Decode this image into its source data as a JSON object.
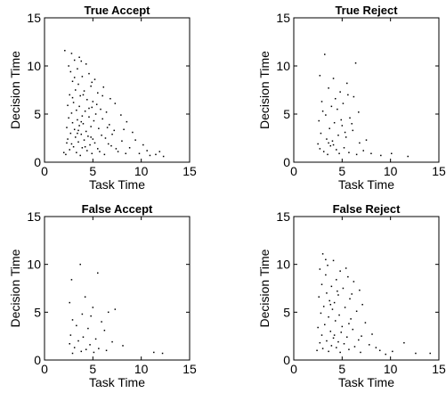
{
  "figure": {
    "background": "#ffffff",
    "point_color": "#000000"
  },
  "chart_data": [
    {
      "type": "scatter",
      "title": "True Accept",
      "xlabel": "Task Time",
      "ylabel": "Decision Time",
      "xlim": [
        0,
        15
      ],
      "ylim": [
        0,
        15
      ],
      "xticks": [
        0,
        5,
        10,
        15
      ],
      "yticks": [
        0,
        5,
        10,
        15
      ],
      "grid": false,
      "points": [
        [
          2.1,
          11.6
        ],
        [
          2.8,
          11.3
        ],
        [
          3.1,
          10.6
        ],
        [
          3.8,
          10.5
        ],
        [
          4.3,
          10.2
        ],
        [
          3.4,
          9.7
        ],
        [
          2.7,
          9.4
        ],
        [
          4.6,
          9.2
        ],
        [
          3.9,
          8.9
        ],
        [
          5.2,
          8.6
        ],
        [
          2.9,
          8.4
        ],
        [
          3.5,
          8.1
        ],
        [
          4.8,
          7.9
        ],
        [
          6.1,
          7.8
        ],
        [
          3.2,
          7.5
        ],
        [
          4.1,
          7.4
        ],
        [
          5.5,
          7.2
        ],
        [
          2.6,
          7.0
        ],
        [
          3.7,
          6.9
        ],
        [
          6.8,
          6.6
        ],
        [
          4.4,
          6.5
        ],
        [
          5.0,
          6.3
        ],
        [
          3.0,
          6.2
        ],
        [
          7.3,
          6.1
        ],
        [
          2.4,
          5.9
        ],
        [
          3.6,
          5.8
        ],
        [
          4.9,
          5.7
        ],
        [
          5.8,
          5.5
        ],
        [
          3.3,
          5.4
        ],
        [
          4.2,
          5.3
        ],
        [
          6.4,
          5.2
        ],
        [
          2.8,
          5.1
        ],
        [
          5.3,
          5.0
        ],
        [
          7.9,
          4.9
        ],
        [
          3.9,
          4.8
        ],
        [
          4.6,
          4.7
        ],
        [
          2.5,
          4.6
        ],
        [
          6.0,
          4.5
        ],
        [
          3.4,
          4.4
        ],
        [
          5.1,
          4.3
        ],
        [
          8.5,
          4.2
        ],
        [
          2.9,
          4.1
        ],
        [
          4.0,
          4.0
        ],
        [
          6.7,
          3.9
        ],
        [
          3.6,
          3.8
        ],
        [
          4.8,
          3.7
        ],
        [
          2.3,
          3.6
        ],
        [
          5.6,
          3.5
        ],
        [
          3.1,
          3.4
        ],
        [
          7.2,
          3.3
        ],
        [
          4.3,
          3.2
        ],
        [
          9.1,
          3.1
        ],
        [
          2.7,
          3.0
        ],
        [
          3.8,
          2.9
        ],
        [
          5.9,
          2.8
        ],
        [
          4.5,
          2.7
        ],
        [
          3.2,
          2.6
        ],
        [
          6.3,
          2.5
        ],
        [
          2.4,
          2.4
        ],
        [
          4.1,
          2.3
        ],
        [
          8.0,
          2.2
        ],
        [
          3.5,
          2.1
        ],
        [
          5.2,
          2.0
        ],
        [
          2.8,
          1.9
        ],
        [
          4.7,
          1.8
        ],
        [
          6.9,
          1.7
        ],
        [
          3.0,
          1.6
        ],
        [
          3.9,
          1.5
        ],
        [
          5.5,
          1.4
        ],
        [
          2.6,
          1.3
        ],
        [
          4.4,
          1.2
        ],
        [
          7.6,
          1.1
        ],
        [
          3.3,
          1.0
        ],
        [
          4.9,
          0.9
        ],
        [
          2.2,
          0.8
        ],
        [
          6.2,
          0.8
        ],
        [
          3.7,
          0.7
        ],
        [
          9.8,
          0.9
        ],
        [
          10.6,
          1.2
        ],
        [
          11.5,
          0.8
        ],
        [
          12.3,
          0.6
        ],
        [
          8.8,
          1.5
        ],
        [
          9.4,
          2.3
        ],
        [
          10.2,
          1.8
        ],
        [
          7.0,
          2.9
        ],
        [
          6.5,
          3.6
        ],
        [
          5.4,
          6.0
        ],
        [
          4.0,
          7.0
        ],
        [
          3.1,
          8.8
        ],
        [
          2.5,
          10.0
        ],
        [
          3.6,
          10.9
        ],
        [
          4.9,
          8.3
        ],
        [
          6.0,
          6.9
        ],
        [
          8.2,
          3.4
        ],
        [
          10.9,
          0.7
        ],
        [
          11.9,
          1.1
        ],
        [
          2.0,
          1.0
        ],
        [
          2.3,
          2.0
        ],
        [
          3.4,
          3.0
        ],
        [
          4.2,
          1.6
        ],
        [
          5.0,
          2.4
        ],
        [
          5.7,
          1.1
        ],
        [
          6.6,
          1.9
        ],
        [
          7.4,
          1.4
        ],
        [
          8.4,
          0.9
        ],
        [
          3.8,
          4.2
        ],
        [
          4.6,
          5.6
        ],
        [
          2.9,
          6.7
        ],
        [
          3.5,
          3.3
        ],
        [
          4.8,
          2.6
        ]
      ]
    },
    {
      "type": "scatter",
      "title": "True Reject",
      "xlabel": "Task Time",
      "ylabel": "Decision Time",
      "xlim": [
        0,
        15
      ],
      "ylim": [
        0,
        15
      ],
      "xticks": [
        0,
        5,
        10,
        15
      ],
      "yticks": [
        0,
        5,
        10,
        15
      ],
      "grid": false,
      "points": [
        [
          3.2,
          11.2
        ],
        [
          6.4,
          10.3
        ],
        [
          2.7,
          9.0
        ],
        [
          4.1,
          8.7
        ],
        [
          5.5,
          8.2
        ],
        [
          3.6,
          7.7
        ],
        [
          4.8,
          7.3
        ],
        [
          6.2,
          6.8
        ],
        [
          2.9,
          6.3
        ],
        [
          5.1,
          6.1
        ],
        [
          3.9,
          5.8
        ],
        [
          4.5,
          5.5
        ],
        [
          6.7,
          5.2
        ],
        [
          3.3,
          4.9
        ],
        [
          5.8,
          4.6
        ],
        [
          2.6,
          4.3
        ],
        [
          4.2,
          4.1
        ],
        [
          5.0,
          3.8
        ],
        [
          3.7,
          3.5
        ],
        [
          6.1,
          3.3
        ],
        [
          2.8,
          3.0
        ],
        [
          4.6,
          2.8
        ],
        [
          5.4,
          2.6
        ],
        [
          3.4,
          2.4
        ],
        [
          4.0,
          2.2
        ],
        [
          6.8,
          2.0
        ],
        [
          2.5,
          1.9
        ],
        [
          3.8,
          1.7
        ],
        [
          5.2,
          1.5
        ],
        [
          4.4,
          1.3
        ],
        [
          7.2,
          1.2
        ],
        [
          3.1,
          1.1
        ],
        [
          5.7,
          1.0
        ],
        [
          4.7,
          0.9
        ],
        [
          8.0,
          0.9
        ],
        [
          3.5,
          0.8
        ],
        [
          6.5,
          0.8
        ],
        [
          9.0,
          0.7
        ],
        [
          10.1,
          0.9
        ],
        [
          11.8,
          0.6
        ],
        [
          7.5,
          2.3
        ],
        [
          6.0,
          4.0
        ],
        [
          4.3,
          6.6
        ],
        [
          5.6,
          7.0
        ],
        [
          3.0,
          5.3
        ],
        [
          4.9,
          4.4
        ],
        [
          3.6,
          2.0
        ],
        [
          5.3,
          3.1
        ],
        [
          2.7,
          1.4
        ],
        [
          4.1,
          1.8
        ]
      ]
    },
    {
      "type": "scatter",
      "title": "False Accept",
      "xlabel": "Task Time",
      "ylabel": "Decision Time",
      "xlim": [
        0,
        15
      ],
      "ylim": [
        0,
        15
      ],
      "xticks": [
        0,
        5,
        10,
        15
      ],
      "yticks": [
        0,
        5,
        10,
        15
      ],
      "grid": false,
      "points": [
        [
          3.7,
          10.0
        ],
        [
          2.8,
          8.4
        ],
        [
          5.5,
          9.1
        ],
        [
          4.2,
          6.6
        ],
        [
          2.6,
          6.0
        ],
        [
          5.0,
          5.5
        ],
        [
          7.3,
          5.3
        ],
        [
          6.6,
          5.0
        ],
        [
          3.9,
          4.8
        ],
        [
          4.8,
          4.6
        ],
        [
          2.9,
          4.2
        ],
        [
          5.9,
          4.0
        ],
        [
          3.3,
          3.6
        ],
        [
          4.5,
          3.3
        ],
        [
          6.2,
          3.1
        ],
        [
          2.7,
          2.6
        ],
        [
          4.0,
          2.4
        ],
        [
          5.3,
          2.2
        ],
        [
          3.5,
          2.0
        ],
        [
          7.0,
          1.9
        ],
        [
          2.6,
          1.7
        ],
        [
          4.7,
          1.6
        ],
        [
          8.1,
          1.5
        ],
        [
          3.1,
          1.3
        ],
        [
          5.6,
          1.2
        ],
        [
          4.3,
          1.1
        ],
        [
          6.4,
          1.0
        ],
        [
          3.8,
          0.9
        ],
        [
          11.3,
          0.8
        ],
        [
          12.2,
          0.7
        ],
        [
          2.9,
          0.7
        ],
        [
          5.1,
          0.8
        ]
      ]
    },
    {
      "type": "scatter",
      "title": "False Reject",
      "xlabel": "Task Time",
      "ylabel": "Decision Time",
      "xlim": [
        0,
        15
      ],
      "ylim": [
        0,
        15
      ],
      "xticks": [
        0,
        5,
        10,
        15
      ],
      "yticks": [
        0,
        5,
        10,
        15
      ],
      "grid": false,
      "points": [
        [
          3.0,
          11.1
        ],
        [
          4.1,
          10.4
        ],
        [
          3.5,
          9.9
        ],
        [
          2.7,
          9.5
        ],
        [
          4.8,
          9.3
        ],
        [
          3.3,
          8.9
        ],
        [
          5.6,
          8.7
        ],
        [
          4.4,
          8.4
        ],
        [
          6.2,
          8.2
        ],
        [
          2.9,
          7.9
        ],
        [
          3.9,
          7.7
        ],
        [
          5.1,
          7.5
        ],
        [
          6.8,
          7.3
        ],
        [
          3.4,
          7.0
        ],
        [
          4.6,
          6.8
        ],
        [
          2.6,
          6.6
        ],
        [
          5.8,
          6.4
        ],
        [
          3.7,
          6.2
        ],
        [
          4.2,
          6.0
        ],
        [
          7.1,
          5.8
        ],
        [
          3.1,
          5.6
        ],
        [
          5.3,
          5.5
        ],
        [
          4.0,
          5.3
        ],
        [
          6.5,
          5.1
        ],
        [
          2.8,
          4.9
        ],
        [
          4.7,
          4.7
        ],
        [
          3.6,
          4.5
        ],
        [
          5.9,
          4.3
        ],
        [
          4.3,
          4.1
        ],
        [
          7.4,
          3.9
        ],
        [
          3.2,
          3.7
        ],
        [
          5.0,
          3.5
        ],
        [
          2.5,
          3.4
        ],
        [
          6.1,
          3.2
        ],
        [
          3.8,
          3.0
        ],
        [
          4.9,
          2.9
        ],
        [
          8.1,
          2.7
        ],
        [
          2.9,
          2.6
        ],
        [
          5.5,
          2.4
        ],
        [
          4.1,
          2.3
        ],
        [
          6.7,
          2.1
        ],
        [
          3.4,
          2.0
        ],
        [
          4.6,
          1.9
        ],
        [
          2.7,
          1.8
        ],
        [
          5.2,
          1.7
        ],
        [
          7.8,
          1.6
        ],
        [
          3.9,
          1.5
        ],
        [
          6.3,
          1.4
        ],
        [
          4.4,
          1.3
        ],
        [
          3.0,
          1.2
        ],
        [
          5.7,
          1.1
        ],
        [
          8.9,
          1.0
        ],
        [
          3.6,
          0.9
        ],
        [
          4.8,
          0.8
        ],
        [
          6.9,
          0.8
        ],
        [
          10.2,
          0.9
        ],
        [
          11.4,
          1.8
        ],
        [
          12.6,
          0.7
        ],
        [
          9.5,
          0.6
        ],
        [
          14.1,
          0.7
        ],
        [
          2.4,
          1.0
        ],
        [
          3.3,
          10.5
        ],
        [
          5.4,
          9.6
        ],
        [
          4.5,
          7.2
        ],
        [
          6.0,
          6.9
        ],
        [
          3.8,
          5.8
        ],
        [
          5.7,
          3.8
        ],
        [
          7.0,
          2.5
        ],
        [
          8.5,
          1.3
        ],
        [
          4.2,
          2.6
        ]
      ]
    }
  ]
}
